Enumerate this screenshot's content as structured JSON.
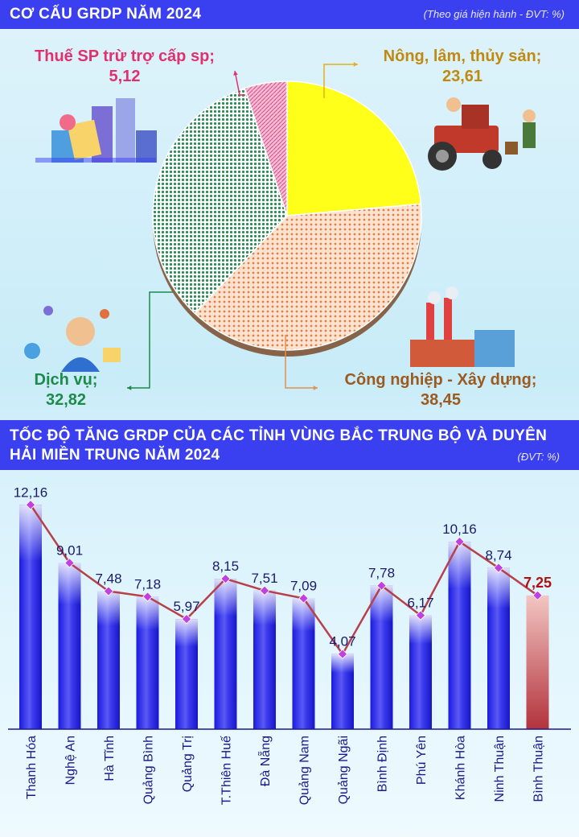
{
  "header1": {
    "title": "CƠ CẤU GRDP NĂM 2024",
    "note": "(Theo giá hiện hành - ĐVT: %)"
  },
  "header2": {
    "title_line1": "TỐC ĐỘ TĂNG GRDP CỦA CÁC TỈNH VÙNG BẮC TRUNG BỘ VÀ DUYÊN",
    "title_line2": "HẢI MIỀN TRUNG NĂM 2024",
    "note": "(ĐVT: %)"
  },
  "pie_labels": {
    "tax": {
      "name": "Thuế SP trừ trợ cấp sp;",
      "value": "5,12"
    },
    "agri": {
      "name": "Nông, lâm, thủy sản;",
      "value": "23,61"
    },
    "industry": {
      "name": "Công nghiệp - Xây dựng;",
      "value": "38,45"
    },
    "service": {
      "name": "Dịch vụ;",
      "value": "32,82"
    }
  },
  "colors": {
    "agri": "#ffff1a",
    "industry": "#f6c9a6",
    "service": "#2e8b57",
    "tax": "#f2a0c0",
    "bar": "#2323e6",
    "bar_highlight": "#c2404a",
    "line": "#b8404a",
    "marker": "#c040e0"
  },
  "chart_data": [
    {
      "type": "pie",
      "title": "CƠ CẤU GRDP NĂM 2024",
      "slices": [
        {
          "name": "Nông, lâm, thủy sản",
          "value": 23.61
        },
        {
          "name": "Công nghiệp - Xây dựng",
          "value": 38.45
        },
        {
          "name": "Dịch vụ",
          "value": 32.82
        },
        {
          "name": "Thuế SP trừ trợ cấp sp",
          "value": 5.12
        }
      ]
    },
    {
      "type": "bar",
      "title": "TỐC ĐỘ TĂNG GRDP CỦA CÁC TỈNH VÙNG BẮC TRUNG BỘ VÀ DUYÊN HẢI MIỀN TRUNG NĂM 2024",
      "categories": [
        "Thanh Hóa",
        "Nghệ An",
        "Hà Tĩnh",
        "Quảng Bình",
        "Quảng Trị",
        "T.Thiên Huế",
        "Đà Nẵng",
        "Quảng Nam",
        "Quảng Ngãi",
        "Bình Định",
        "Phú Yên",
        "Khánh Hòa",
        "Ninh Thuận",
        "Bình Thuận"
      ],
      "values": [
        12.16,
        9.01,
        7.48,
        7.18,
        5.97,
        8.15,
        7.51,
        7.09,
        4.07,
        7.78,
        6.17,
        10.16,
        8.74,
        7.25
      ],
      "value_labels": [
        "12,16",
        "9,01",
        "7,48",
        "7,18",
        "5,97",
        "8,15",
        "7,51",
        "7,09",
        "4,07",
        "7,78",
        "6,17",
        "10,16",
        "8,74",
        "7,25"
      ],
      "highlight": "Bình Thuận",
      "ylim": [
        0,
        13
      ]
    }
  ]
}
